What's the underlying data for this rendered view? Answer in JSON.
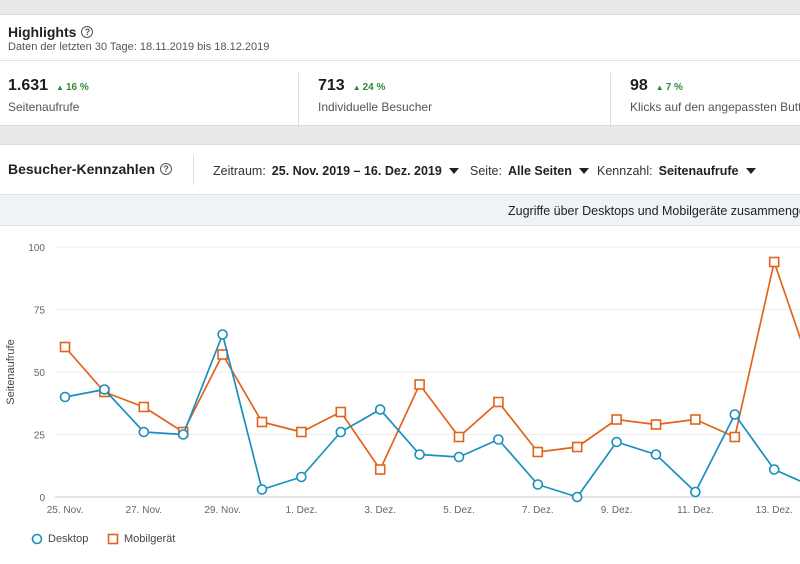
{
  "highlights": {
    "title": "Highlights",
    "subtitle": "Daten der letzten 30 Tage: 18.11.2019 bis 18.12.2019",
    "metrics": [
      {
        "value": "1.631",
        "delta": "16 %",
        "label": "Seitenaufrufe"
      },
      {
        "value": "713",
        "delta": "24 %",
        "label": "Individuelle Besucher"
      },
      {
        "value": "98",
        "delta": "7 %",
        "label": "Klicks auf den angepassten Button"
      }
    ]
  },
  "visitors": {
    "title": "Besucher-Kennzahlen",
    "filters": {
      "timerange_label": "Zeitraum:",
      "timerange_value": "25. Nov. 2019 – 16. Dez. 2019",
      "page_label": "Seite:",
      "page_value": "Alle Seiten",
      "metric_label": "Kennzahl:",
      "metric_value": "Seitenaufrufe"
    },
    "banner": "Zugriffe über Desktops und Mobilgeräte zusammengefasst"
  },
  "icons": {
    "help": "help-circle-icon",
    "dropdown": "caret-down-icon",
    "delta": "triangle-up-icon"
  },
  "colors": {
    "desktop": "#1a8fbf",
    "mobile": "#e2631b",
    "positive": "#2d8a31"
  },
  "chart_data": {
    "type": "line",
    "ylabel": "Seitenaufrufe",
    "ylim": [
      0,
      100
    ],
    "yticks": [
      0,
      25,
      50,
      75,
      100
    ],
    "x": [
      "25. Nov.",
      "26. Nov.",
      "27. Nov.",
      "28. Nov.",
      "29. Nov.",
      "30. Nov.",
      "1. Dez.",
      "2. Dez.",
      "3. Dez.",
      "4. Dez.",
      "5. Dez.",
      "6. Dez.",
      "7. Dez.",
      "8. Dez.",
      "9. Dez.",
      "10. Dez.",
      "11. Dez.",
      "12. Dez.",
      "13. Dez.",
      "14. Dez."
    ],
    "xtick_labels": [
      "25. Nov.",
      "27. Nov.",
      "29. Nov.",
      "1. Dez.",
      "3. Dez.",
      "5. Dez.",
      "7. Dez.",
      "9. Dez.",
      "11. Dez.",
      "13. Dez."
    ],
    "series": [
      {
        "name": "Desktop",
        "marker": "circle",
        "values": [
          40,
          43,
          26,
          25,
          65,
          3,
          8,
          26,
          35,
          17,
          16,
          23,
          5,
          0,
          22,
          17,
          2,
          33,
          11,
          4
        ]
      },
      {
        "name": "Mobilgerät",
        "marker": "square",
        "values": [
          60,
          42,
          36,
          26,
          57,
          30,
          26,
          34,
          11,
          45,
          24,
          38,
          18,
          20,
          31,
          29,
          31,
          24,
          94,
          48
        ]
      }
    ],
    "grid": true,
    "legend": "bottom-left"
  }
}
